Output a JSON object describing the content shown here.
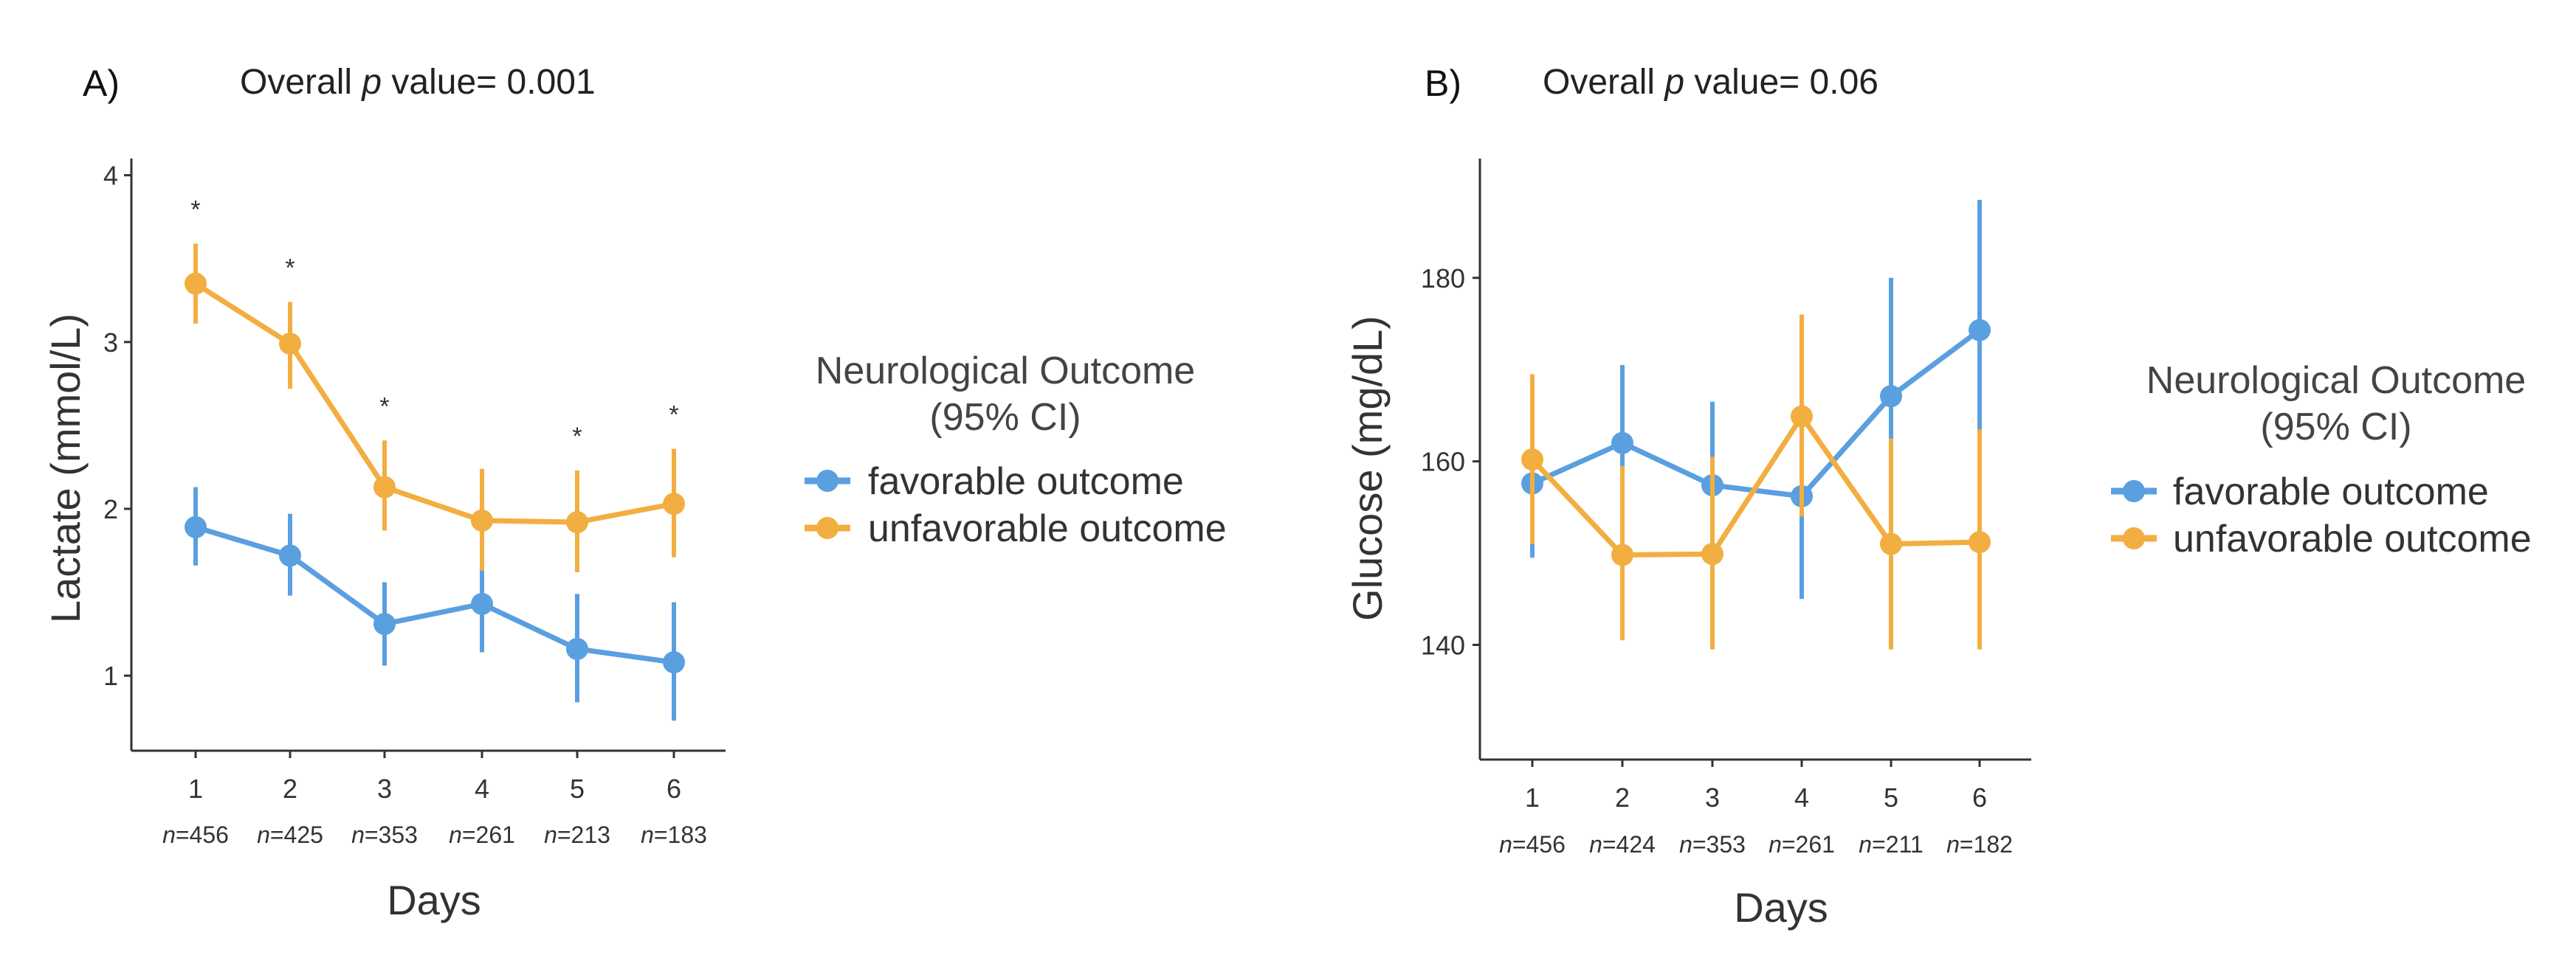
{
  "colors": {
    "favorable": "#5A9FE0",
    "unfavorable": "#F2AE40",
    "axis": "#333333"
  },
  "chart_data": [
    {
      "type": "line",
      "panel_label": "A)",
      "title_prefix": "Overall ",
      "title_p": "p",
      "title_suffix": " value= 0.001",
      "xlabel": "Days",
      "ylabel": "Lactate (mmol/L)",
      "ylim": [
        0.55,
        4.1
      ],
      "yticks": [
        1,
        2,
        3,
        4
      ],
      "categories": [
        "1",
        "2",
        "3",
        "4",
        "5",
        "6"
      ],
      "n_labels": [
        "n=456",
        "n=425",
        "n=353",
        "n=261",
        "n=213",
        "n=183"
      ],
      "significance_marks": [
        "*",
        "*",
        "*",
        "",
        "*",
        "*"
      ],
      "series": [
        {
          "name": "favorable outcome",
          "color": "#5A9FE0",
          "values": [
            1.89,
            1.72,
            1.31,
            1.43,
            1.16,
            1.08
          ],
          "lower": [
            1.66,
            1.48,
            1.06,
            1.14,
            0.84,
            0.73
          ],
          "upper": [
            2.13,
            1.97,
            1.56,
            1.72,
            1.49,
            1.44
          ]
        },
        {
          "name": "unfavorable outcome",
          "color": "#F2AE40",
          "values": [
            3.35,
            2.99,
            2.13,
            1.93,
            1.92,
            2.03
          ],
          "lower": [
            3.11,
            2.72,
            1.87,
            1.63,
            1.62,
            1.71
          ],
          "upper": [
            3.59,
            3.24,
            2.41,
            2.24,
            2.23,
            2.36
          ]
        }
      ],
      "legend": {
        "title_line1": "Neurological Outcome",
        "title_line2": "(95% CI)",
        "position": "right"
      }
    },
    {
      "type": "line",
      "panel_label": "B)",
      "title_prefix": "Overall ",
      "title_p": "p",
      "title_suffix": " value= 0.06",
      "xlabel": "Days",
      "ylabel": "Glucose (mg/dL)",
      "ylim": [
        127.5,
        193
      ],
      "yticks": [
        140,
        160,
        180
      ],
      "categories": [
        "1",
        "2",
        "3",
        "4",
        "5",
        "6"
      ],
      "n_labels": [
        "n=456",
        "n=424",
        "n=353",
        "n=261",
        "n=211",
        "n=182"
      ],
      "series": [
        {
          "name": "favorable outcome",
          "color": "#5A9FE0",
          "values": [
            157.6,
            162.0,
            157.4,
            156.2,
            167.1,
            174.3
          ],
          "lower": [
            149.5,
            153.5,
            149.0,
            145.0,
            154.5,
            160.0
          ],
          "upper": [
            166.0,
            170.5,
            166.5,
            167.0,
            180.0,
            188.5
          ]
        },
        {
          "name": "unfavorable outcome",
          "color": "#F2AE40",
          "values": [
            160.2,
            149.8,
            149.9,
            164.9,
            151.0,
            151.2
          ],
          "lower": [
            151.0,
            140.5,
            139.5,
            154.0,
            139.5,
            139.5
          ],
          "upper": [
            169.5,
            159.5,
            160.5,
            176.0,
            162.5,
            163.5
          ]
        }
      ],
      "legend": {
        "title_line1": "Neurological Outcome",
        "title_line2": "(95% CI)",
        "position": "right"
      }
    }
  ]
}
